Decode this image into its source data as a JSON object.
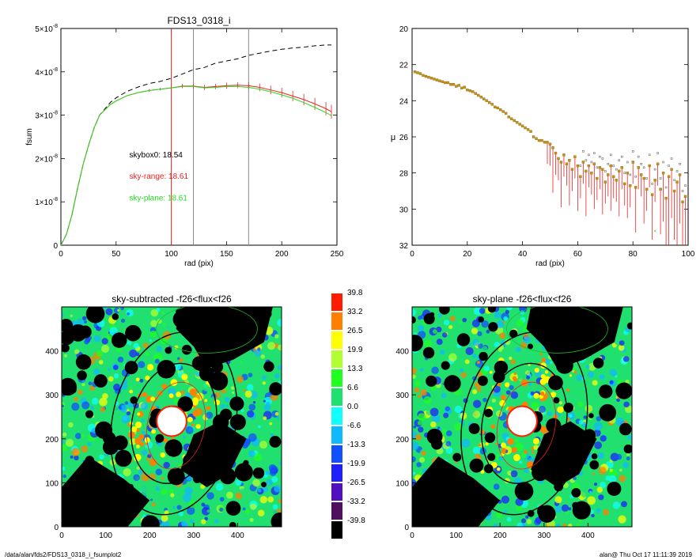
{
  "footer": {
    "path": "/data/alan/fds2/FDS13_0318_i_fsumplot2",
    "user_time": "alan@  Thu Oct 17 11:11:39 2019"
  },
  "colors": {
    "skybox": "#000000",
    "sky_range": "#ee2020",
    "sky_plane": "#22dd22",
    "frame": "#000000"
  },
  "chart_data": [
    {
      "type": "line",
      "title": "FDS13_0318_i",
      "xlabel": "rad (pix)",
      "ylabel": "fsum",
      "xlim": [
        0,
        250
      ],
      "ylim": [
        0,
        5e-08
      ],
      "xticks": [
        "0",
        "50",
        "100",
        "150",
        "200",
        "250"
      ],
      "yticks": [
        {
          "mant": "0",
          "exp": ""
        },
        {
          "mant": "1×10",
          "exp": "-8"
        },
        {
          "mant": "2×10",
          "exp": "-8"
        },
        {
          "mant": "3×10",
          "exp": "-8"
        },
        {
          "mant": "4×10",
          "exp": "-8"
        },
        {
          "mant": "5×10",
          "exp": "-8"
        }
      ],
      "vlines": [
        {
          "x": 100,
          "color": "#ee2020"
        },
        {
          "x": 120,
          "color": "#888888"
        },
        {
          "x": 170,
          "color": "#888888"
        }
      ],
      "annotations": [
        {
          "text": "skybox0: 18.54",
          "color": "#000000",
          "x": 62,
          "y": 2.03e-08
        },
        {
          "text": "sky-range: 18.61",
          "color": "#ee2020",
          "x": 62,
          "y": 1.53e-08
        },
        {
          "text": "sky-plane: 18.61",
          "color": "#22dd22",
          "x": 62,
          "y": 1.03e-08
        }
      ],
      "series": [
        {
          "name": "skybox0",
          "style": "dashed",
          "color": "#000000",
          "x": [
            0,
            5,
            10,
            15,
            20,
            25,
            30,
            35,
            40,
            45,
            50,
            60,
            70,
            80,
            90,
            100,
            110,
            120,
            130,
            140,
            150,
            160,
            170,
            180,
            190,
            200,
            210,
            220,
            230,
            240,
            245
          ],
          "y": [
            0,
            2.5e-09,
            7e-09,
            1.3e-08,
            1.85e-08,
            2.3e-08,
            2.7e-08,
            3e-08,
            3.15e-08,
            3.3e-08,
            3.4e-08,
            3.55e-08,
            3.65e-08,
            3.73e-08,
            3.78e-08,
            3.85e-08,
            3.95e-08,
            4.05e-08,
            4.1e-08,
            4.2e-08,
            4.25e-08,
            4.3e-08,
            4.38e-08,
            4.43e-08,
            4.48e-08,
            4.52e-08,
            4.55e-08,
            4.57e-08,
            4.6e-08,
            4.62e-08,
            4.62e-08
          ]
        },
        {
          "name": "sky-range",
          "style": "errorbars",
          "color": "#ee2020",
          "x": [
            0,
            5,
            10,
            15,
            20,
            25,
            30,
            35,
            40,
            45,
            50,
            60,
            70,
            80,
            90,
            100,
            110,
            120,
            130,
            140,
            150,
            160,
            170,
            180,
            190,
            200,
            210,
            220,
            230,
            240,
            245
          ],
          "y": [
            0,
            2.5e-09,
            7e-09,
            1.3e-08,
            1.85e-08,
            2.3e-08,
            2.7e-08,
            3e-08,
            3.13e-08,
            3.25e-08,
            3.33e-08,
            3.45e-08,
            3.52e-08,
            3.57e-08,
            3.6e-08,
            3.63e-08,
            3.67e-08,
            3.67e-08,
            3.64e-08,
            3.66e-08,
            3.68e-08,
            3.69e-08,
            3.68e-08,
            3.64e-08,
            3.58e-08,
            3.52e-08,
            3.44e-08,
            3.36e-08,
            3.26e-08,
            3.15e-08,
            3.08e-08
          ],
          "err": [
            0,
            0,
            0,
            0,
            0,
            0,
            0,
            0,
            1e-10,
            1e-10,
            1e-10,
            2e-10,
            2e-10,
            3e-10,
            3e-10,
            4e-10,
            5e-10,
            5e-10,
            6e-10,
            6e-10,
            7e-10,
            7e-10,
            8e-10,
            9e-10,
            1e-09,
            1.1e-09,
            1.2e-09,
            1.3e-09,
            1.4e-09,
            1.5e-09,
            1.6e-09
          ]
        },
        {
          "name": "sky-plane",
          "style": "solid",
          "color": "#22dd22",
          "x": [
            0,
            5,
            10,
            15,
            20,
            25,
            30,
            35,
            40,
            45,
            50,
            60,
            70,
            80,
            90,
            100,
            110,
            120,
            130,
            140,
            150,
            160,
            170,
            180,
            190,
            200,
            210,
            220,
            230,
            240,
            245
          ],
          "y": [
            0,
            2.5e-09,
            7e-09,
            1.3e-08,
            1.85e-08,
            2.3e-08,
            2.7e-08,
            3e-08,
            3.13e-08,
            3.25e-08,
            3.33e-08,
            3.45e-08,
            3.52e-08,
            3.57e-08,
            3.6e-08,
            3.63e-08,
            3.66e-08,
            3.66e-08,
            3.63e-08,
            3.64e-08,
            3.66e-08,
            3.66e-08,
            3.64e-08,
            3.6e-08,
            3.54e-08,
            3.47e-08,
            3.39e-08,
            3.29e-08,
            3.18e-08,
            3.06e-08,
            2.99e-08
          ]
        }
      ]
    },
    {
      "type": "scatter",
      "title": "",
      "xlabel": "rad (pix)",
      "ylabel": "μ",
      "xlim": [
        0,
        100
      ],
      "ylim": [
        32,
        20
      ],
      "xticks": [
        "0",
        "20",
        "40",
        "60",
        "80",
        "100"
      ],
      "yticks": [
        "20",
        "22",
        "24",
        "26",
        "28",
        "30",
        "32"
      ],
      "x": [
        1,
        2,
        3,
        4,
        5,
        6,
        7,
        8,
        9,
        10,
        11,
        12,
        13,
        14,
        15,
        16,
        17,
        18,
        19,
        20,
        21,
        22,
        23,
        24,
        25,
        26,
        27,
        28,
        29,
        30,
        31,
        32,
        33,
        34,
        35,
        36,
        37,
        38,
        39,
        40,
        41,
        42,
        43,
        44,
        45,
        46,
        47,
        48,
        49,
        50,
        51,
        52,
        53,
        54,
        55,
        56,
        57,
        58,
        59,
        60,
        61,
        62,
        63,
        64,
        65,
        66,
        67,
        68,
        69,
        70,
        71,
        72,
        73,
        74,
        75,
        76,
        77,
        78,
        79,
        80,
        81,
        82,
        83,
        84,
        85,
        86,
        87,
        88,
        89,
        90,
        91,
        92,
        93,
        94,
        95,
        96,
        97,
        98,
        99
      ],
      "y": [
        22.4,
        22.45,
        22.5,
        22.6,
        22.65,
        22.7,
        22.75,
        22.8,
        22.85,
        22.9,
        22.95,
        23.0,
        23.0,
        23.1,
        23.1,
        23.2,
        23.15,
        23.3,
        23.25,
        23.4,
        23.45,
        23.5,
        23.6,
        23.7,
        23.8,
        23.9,
        24.0,
        24.1,
        24.2,
        24.35,
        24.4,
        24.5,
        24.6,
        24.7,
        24.9,
        25.0,
        25.1,
        25.2,
        25.3,
        25.4,
        25.5,
        25.6,
        25.7,
        26.0,
        26.1,
        26.2,
        26.2,
        26.3,
        26.3,
        26.4,
        26.6,
        26.9,
        27.2,
        27.4,
        27.0,
        27.5,
        27.3,
        27.8,
        27.1,
        27.6,
        28.2,
        27.4,
        27.9,
        27.6,
        28.0,
        27.5,
        28.3,
        27.7,
        27.8,
        28.5,
        28.1,
        27.6,
        28.2,
        28.4,
        27.9,
        27.7,
        28.6,
        28.0,
        28.7,
        27.4,
        28.8,
        27.7,
        28.1,
        28.3,
        28.9,
        27.6,
        29.2,
        28.4,
        27.5,
        28.9,
        28.0,
        29.4,
        28.2,
        27.8,
        29.0,
        28.5,
        28.1,
        29.6,
        29.3
      ],
      "extra_point": {
        "x": 88,
        "y": 31.2,
        "color": "#22dd22"
      }
    },
    {
      "type": "heatmap",
      "title": "sky-subtracted -f26<flux<f26",
      "xlim": [
        0,
        500
      ],
      "ylim": [
        0,
        500
      ],
      "xticks": [
        "0",
        "100",
        "200",
        "300",
        "400"
      ],
      "yticks": [
        "0",
        "100",
        "200",
        "300",
        "400"
      ]
    },
    {
      "type": "colorbar",
      "labels": [
        "39.8",
        "33.2",
        "26.5",
        "19.9",
        "13.3",
        "6.6",
        "0.0",
        "-6.6",
        "-13.3",
        "-19.9",
        "-26.5",
        "-33.2",
        "-39.8"
      ],
      "colors": [
        "#ff1a00",
        "#ff8000",
        "#ffff00",
        "#b0ff30",
        "#20ff20",
        "#20e070",
        "#10ffff",
        "#10b8ff",
        "#1050ff",
        "#2020ff",
        "#5010c0",
        "#501060",
        "#000000"
      ]
    },
    {
      "type": "heatmap",
      "title": "sky-plane -f26<flux<f26",
      "xlim": [
        0,
        500
      ],
      "ylim": [
        0,
        500
      ],
      "xticks": [
        "0",
        "100",
        "200",
        "300",
        "400"
      ],
      "yticks": [
        "0",
        "100",
        "200",
        "300",
        "400"
      ]
    }
  ]
}
